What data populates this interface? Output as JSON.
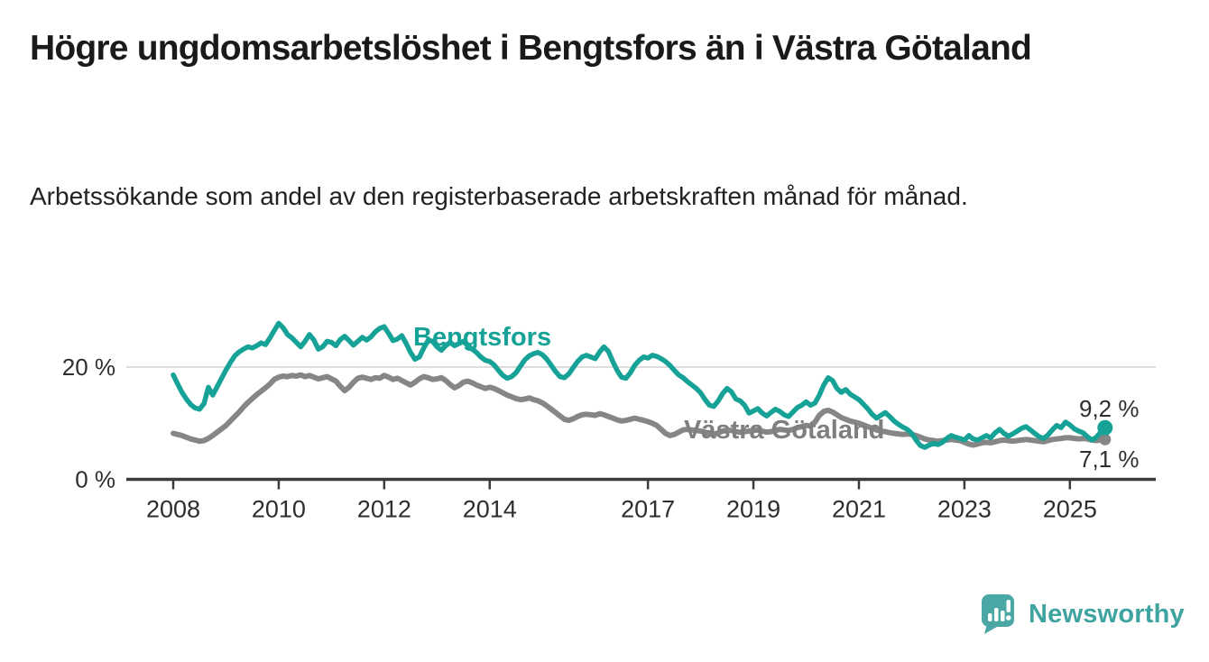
{
  "header": {
    "title": "Högre ungdomsarbetslöshet i Bengtsfors än i Västra Götaland",
    "subtitle": "Arbetssökande som andel av den registerbaserade arbetskraften månad för månad."
  },
  "footer": {
    "brand": "Newsworthy"
  },
  "colors": {
    "accent_teal": "#16A296",
    "series_gray": "#868686",
    "axis": "#3b3b3b",
    "grid": "#dddddd",
    "text_dark": "#1a1a1a",
    "brand_teal": "#3FA3A0"
  },
  "chart_data": {
    "type": "line",
    "title": "Högre ungdomsarbetslöshet i Bengtsfors än i Västra Götaland",
    "subtitle": "Arbetssökande som andel av den registerbaserade arbetskraften månad för månad.",
    "unit": "%",
    "frequency": "monthly",
    "x_start": "2008-01",
    "x_end": "2025-09",
    "x_tick_years": [
      2008,
      2010,
      2012,
      2014,
      2017,
      2019,
      2021,
      2023,
      2025
    ],
    "y_ticks": [
      {
        "value": 0,
        "label": "0 %"
      },
      {
        "value": 20,
        "label": "20 %"
      }
    ],
    "ylim": [
      0,
      30
    ],
    "grid": "horizontal-only",
    "legend_position": "inline-labels",
    "series": [
      {
        "name": "Bengtsfors",
        "color": "#16A296",
        "end_label": "9,2 %",
        "end_value": 9.2,
        "values": [
          18.6,
          17.0,
          15.5,
          14.3,
          13.3,
          12.7,
          12.5,
          13.5,
          16.4,
          15.0,
          16.5,
          18.0,
          19.5,
          20.8,
          22.0,
          22.7,
          23.2,
          23.6,
          23.4,
          23.8,
          24.3,
          24.0,
          25.2,
          26.5,
          27.8,
          27.0,
          25.8,
          25.2,
          24.4,
          23.6,
          24.6,
          25.8,
          24.8,
          23.2,
          23.6,
          24.6,
          24.4,
          23.8,
          24.9,
          25.5,
          24.7,
          23.9,
          24.6,
          25.3,
          24.8,
          25.4,
          26.3,
          26.9,
          27.2,
          26.0,
          24.7,
          25.0,
          25.6,
          24.2,
          22.6,
          21.4,
          21.8,
          23.4,
          24.8,
          24.6,
          23.6,
          23.0,
          23.8,
          24.4,
          23.8,
          24.2,
          24.6,
          23.8,
          23.2,
          22.6,
          21.8,
          21.2,
          21.0,
          20.4,
          19.4,
          18.5,
          18.0,
          18.3,
          19.0,
          20.2,
          21.3,
          22.0,
          22.4,
          22.6,
          22.2,
          21.4,
          20.3,
          19.2,
          18.3,
          18.1,
          18.8,
          19.9,
          21.0,
          21.8,
          22.1,
          21.8,
          21.5,
          22.7,
          23.6,
          22.8,
          21.0,
          19.4,
          18.2,
          18.0,
          19.0,
          20.3,
          21.2,
          21.8,
          21.6,
          22.1,
          21.9,
          21.5,
          21.0,
          20.3,
          19.4,
          18.6,
          18.1,
          17.4,
          16.8,
          16.2,
          15.4,
          14.2,
          13.2,
          13.0,
          14.0,
          15.3,
          16.2,
          15.6,
          14.3,
          14.0,
          13.2,
          11.8,
          12.2,
          12.6,
          11.8,
          11.3,
          11.9,
          12.5,
          12.1,
          11.5,
          11.2,
          12.0,
          12.8,
          13.2,
          13.8,
          13.2,
          13.6,
          15.0,
          16.8,
          18.1,
          17.6,
          16.2,
          15.5,
          16.0,
          15.2,
          14.7,
          14.2,
          13.4,
          12.6,
          11.6,
          10.9,
          11.4,
          11.9,
          11.2,
          10.4,
          9.8,
          9.3,
          8.9,
          8.2,
          7.0,
          6.0,
          5.7,
          6.1,
          6.4,
          6.2,
          6.6,
          7.3,
          7.8,
          7.5,
          7.3,
          7.0,
          7.8,
          7.2,
          7.0,
          7.4,
          7.8,
          7.4,
          8.3,
          8.9,
          8.2,
          7.7,
          8.1,
          8.6,
          9.1,
          9.4,
          8.8,
          8.2,
          7.6,
          7.3,
          7.9,
          8.8,
          9.6,
          9.2,
          10.2,
          9.7,
          9.0,
          8.6,
          8.3,
          7.6,
          7.0,
          7.5,
          8.4,
          9.2
        ]
      },
      {
        "name": "Västra Götaland",
        "color": "#868686",
        "end_label": "7,1 %",
        "end_value": 7.1,
        "values": [
          8.2,
          8.0,
          7.8,
          7.5,
          7.2,
          7.0,
          6.8,
          6.9,
          7.3,
          7.8,
          8.4,
          9.0,
          9.6,
          10.4,
          11.2,
          12.0,
          12.9,
          13.7,
          14.4,
          15.1,
          15.7,
          16.3,
          17.0,
          17.8,
          18.2,
          18.4,
          18.3,
          18.5,
          18.4,
          18.6,
          18.3,
          18.5,
          18.2,
          17.9,
          18.1,
          18.3,
          17.9,
          17.5,
          16.6,
          15.8,
          16.4,
          17.3,
          18.0,
          18.2,
          18.0,
          17.8,
          18.1,
          18.0,
          18.5,
          18.2,
          17.8,
          18.0,
          17.6,
          17.2,
          16.8,
          17.3,
          17.9,
          18.3,
          18.1,
          17.8,
          17.9,
          18.1,
          17.6,
          16.9,
          16.3,
          16.7,
          17.3,
          17.5,
          17.2,
          16.8,
          16.5,
          16.2,
          16.4,
          16.2,
          15.8,
          15.4,
          15.0,
          14.7,
          14.4,
          14.2,
          14.3,
          14.5,
          14.2,
          14.0,
          13.6,
          13.1,
          12.5,
          11.9,
          11.3,
          10.7,
          10.5,
          10.8,
          11.2,
          11.5,
          11.6,
          11.5,
          11.4,
          11.7,
          11.5,
          11.2,
          10.9,
          10.6,
          10.4,
          10.5,
          10.7,
          10.9,
          10.7,
          10.5,
          10.3,
          10.0,
          9.6,
          8.9,
          8.2,
          7.8,
          8.0,
          8.4,
          8.8,
          8.9,
          8.8,
          8.7,
          8.6,
          8.4,
          8.1,
          8.0,
          8.3,
          8.6,
          8.8,
          8.7,
          8.5,
          8.4,
          8.5,
          8.6,
          8.7,
          8.8,
          8.6,
          8.4,
          8.5,
          8.7,
          8.9,
          8.8,
          8.7,
          8.9,
          9.2,
          9.4,
          9.6,
          9.5,
          10.2,
          11.4,
          12.1,
          12.3,
          12.0,
          11.5,
          11.0,
          10.7,
          10.4,
          10.2,
          10.0,
          9.7,
          9.4,
          9.1,
          8.8,
          8.6,
          8.5,
          8.3,
          8.2,
          8.1,
          8.0,
          8.1,
          8.0,
          7.8,
          7.5,
          7.2,
          7.0,
          6.9,
          6.8,
          6.9,
          7.0,
          7.1,
          7.0,
          6.9,
          6.6,
          6.3,
          6.1,
          6.3,
          6.5,
          6.6,
          6.5,
          6.7,
          6.9,
          7.0,
          6.9,
          6.8,
          6.9,
          7.0,
          7.1,
          7.0,
          6.9,
          6.8,
          6.7,
          6.9,
          7.1,
          7.2,
          7.3,
          7.4,
          7.4,
          7.3,
          7.2,
          7.3,
          7.2,
          7.0,
          6.9,
          7.0,
          7.1
        ]
      }
    ]
  }
}
